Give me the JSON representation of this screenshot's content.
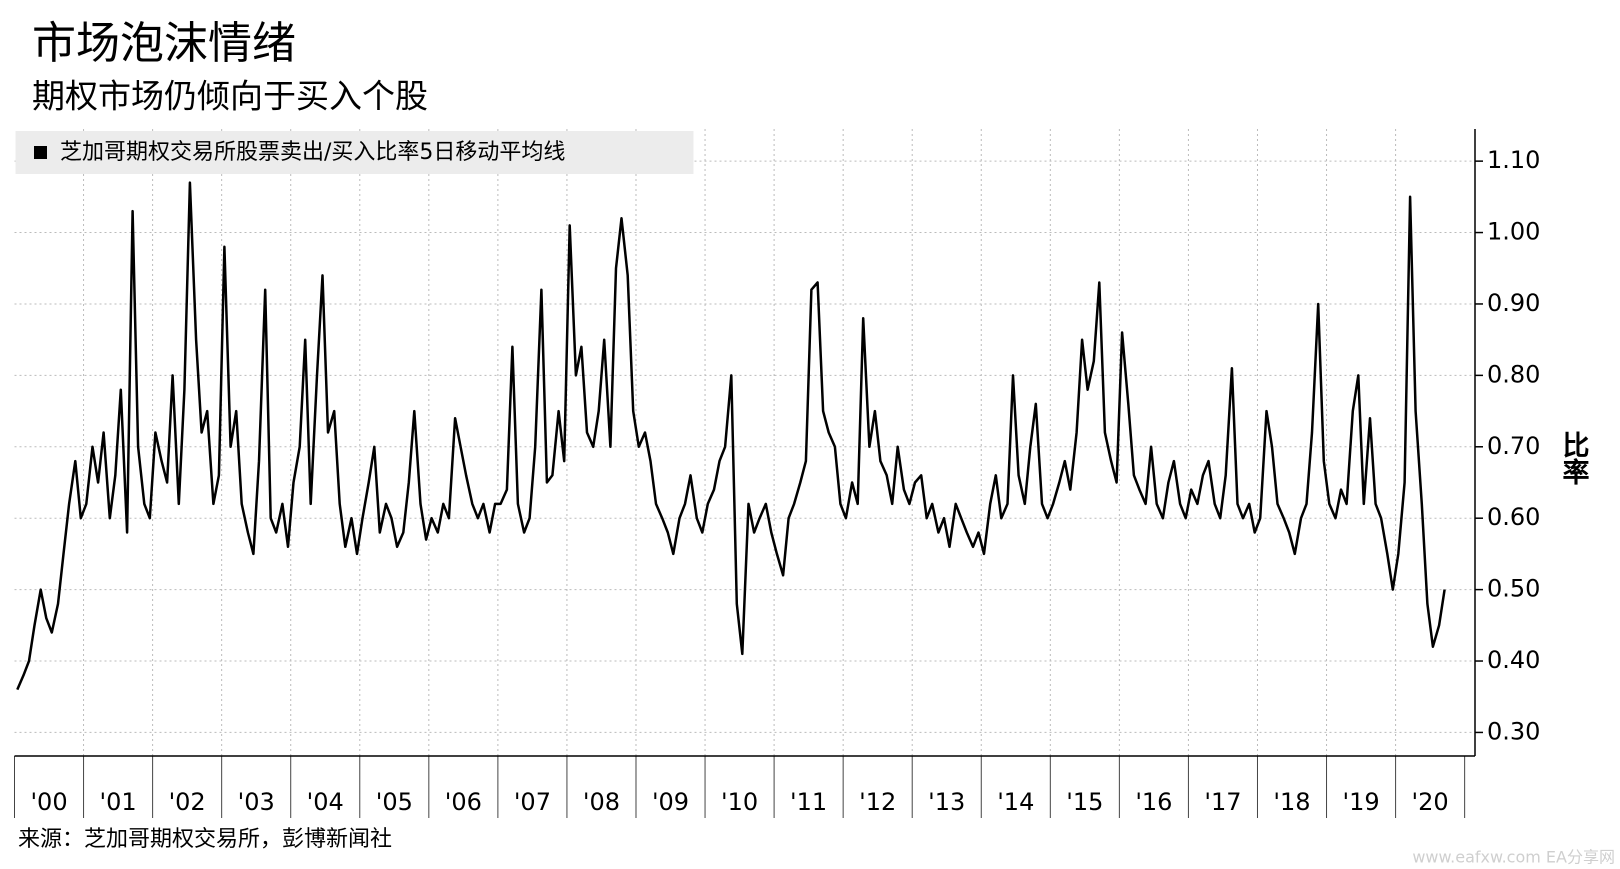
{
  "chart_data": {
    "type": "line",
    "title": "市场泡沫情绪",
    "subtitle": "期权市场仍倾向于买入个股",
    "ylabel": "比率",
    "source": "来源：芝加哥期权交易所，彭博新闻社",
    "watermark": "www.eafxw.com EA分享网",
    "legend": "top-left",
    "grid": true,
    "xlim": [
      2000,
      2021.15
    ],
    "xticks": [
      {
        "value": 2000,
        "label": "'00"
      },
      {
        "value": 2001,
        "label": "'01"
      },
      {
        "value": 2002,
        "label": "'02"
      },
      {
        "value": 2003,
        "label": "'03"
      },
      {
        "value": 2004,
        "label": "'04"
      },
      {
        "value": 2005,
        "label": "'05"
      },
      {
        "value": 2006,
        "label": "'06"
      },
      {
        "value": 2007,
        "label": "'07"
      },
      {
        "value": 2008,
        "label": "'08"
      },
      {
        "value": 2009,
        "label": "'09"
      },
      {
        "value": 2010,
        "label": "'10"
      },
      {
        "value": 2011,
        "label": "'11"
      },
      {
        "value": 2012,
        "label": "'12"
      },
      {
        "value": 2013,
        "label": "'13"
      },
      {
        "value": 2014,
        "label": "'14"
      },
      {
        "value": 2015,
        "label": "'15"
      },
      {
        "value": 2016,
        "label": "'16"
      },
      {
        "value": 2017,
        "label": "'17"
      },
      {
        "value": 2018,
        "label": "'18"
      },
      {
        "value": 2019,
        "label": "'19"
      },
      {
        "value": 2020,
        "label": "'20"
      }
    ],
    "ylim": [
      0.267,
      1.145
    ],
    "yticks": [
      {
        "value": 0.3,
        "label": "0.30"
      },
      {
        "value": 0.4,
        "label": "0.40"
      },
      {
        "value": 0.5,
        "label": "0.50"
      },
      {
        "value": 0.6,
        "label": "0.60"
      },
      {
        "value": 0.7,
        "label": "0.70"
      },
      {
        "value": 0.8,
        "label": "0.80"
      },
      {
        "value": 0.9,
        "label": "0.90"
      },
      {
        "value": 1.0,
        "label": "1.00"
      },
      {
        "value": 1.1,
        "label": "1.10"
      }
    ],
    "x": [
      2000.04,
      2000.13,
      2000.21,
      2000.29,
      2000.38,
      2000.46,
      2000.54,
      2000.63,
      2000.71,
      2000.79,
      2000.88,
      2000.96,
      2001.04,
      2001.13,
      2001.21,
      2001.29,
      2001.38,
      2001.46,
      2001.54,
      2001.63,
      2001.71,
      2001.79,
      2001.88,
      2001.96,
      2002.04,
      2002.13,
      2002.21,
      2002.29,
      2002.38,
      2002.46,
      2002.54,
      2002.63,
      2002.71,
      2002.79,
      2002.88,
      2002.96,
      2003.04,
      2003.13,
      2003.21,
      2003.29,
      2003.38,
      2003.46,
      2003.54,
      2003.63,
      2003.71,
      2003.79,
      2003.88,
      2003.96,
      2004.04,
      2004.13,
      2004.21,
      2004.29,
      2004.38,
      2004.46,
      2004.54,
      2004.63,
      2004.71,
      2004.79,
      2004.88,
      2004.96,
      2005.04,
      2005.13,
      2005.21,
      2005.29,
      2005.38,
      2005.46,
      2005.54,
      2005.63,
      2005.71,
      2005.79,
      2005.88,
      2005.96,
      2006.04,
      2006.13,
      2006.21,
      2006.29,
      2006.38,
      2006.46,
      2006.54,
      2006.63,
      2006.71,
      2006.79,
      2006.88,
      2006.96,
      2007.04,
      2007.13,
      2007.21,
      2007.29,
      2007.38,
      2007.46,
      2007.54,
      2007.63,
      2007.71,
      2007.79,
      2007.88,
      2007.96,
      2008.04,
      2008.13,
      2008.21,
      2008.29,
      2008.38,
      2008.46,
      2008.54,
      2008.63,
      2008.71,
      2008.79,
      2008.88,
      2008.96,
      2009.04,
      2009.13,
      2009.21,
      2009.29,
      2009.38,
      2009.46,
      2009.54,
      2009.63,
      2009.71,
      2009.79,
      2009.88,
      2009.96,
      2010.04,
      2010.13,
      2010.21,
      2010.29,
      2010.38,
      2010.46,
      2010.54,
      2010.63,
      2010.71,
      2010.79,
      2010.88,
      2010.96,
      2011.04,
      2011.13,
      2011.21,
      2011.29,
      2011.38,
      2011.46,
      2011.54,
      2011.63,
      2011.71,
      2011.79,
      2011.88,
      2011.96,
      2012.04,
      2012.13,
      2012.21,
      2012.29,
      2012.38,
      2012.46,
      2012.54,
      2012.63,
      2012.71,
      2012.79,
      2012.88,
      2012.96,
      2013.04,
      2013.13,
      2013.21,
      2013.29,
      2013.38,
      2013.46,
      2013.54,
      2013.63,
      2013.71,
      2013.79,
      2013.88,
      2013.96,
      2014.04,
      2014.13,
      2014.21,
      2014.29,
      2014.38,
      2014.46,
      2014.54,
      2014.63,
      2014.71,
      2014.79,
      2014.88,
      2014.96,
      2015.04,
      2015.13,
      2015.21,
      2015.29,
      2015.38,
      2015.46,
      2015.54,
      2015.63,
      2015.71,
      2015.79,
      2015.88,
      2015.96,
      2016.04,
      2016.13,
      2016.21,
      2016.29,
      2016.38,
      2016.46,
      2016.54,
      2016.63,
      2016.71,
      2016.79,
      2016.88,
      2016.96,
      2017.04,
      2017.13,
      2017.21,
      2017.29,
      2017.38,
      2017.46,
      2017.54,
      2017.63,
      2017.71,
      2017.79,
      2017.88,
      2017.96,
      2018.04,
      2018.13,
      2018.21,
      2018.29,
      2018.38,
      2018.46,
      2018.54,
      2018.63,
      2018.71,
      2018.79,
      2018.88,
      2018.96,
      2019.04,
      2019.13,
      2019.21,
      2019.29,
      2019.38,
      2019.46,
      2019.54,
      2019.63,
      2019.71,
      2019.79,
      2019.88,
      2019.96,
      2020.04,
      2020.13,
      2020.21,
      2020.29,
      2020.38,
      2020.46,
      2020.54,
      2020.63,
      2020.71
    ],
    "series": [
      {
        "name": "芝加哥期权交易所股票卖出/买入比率5日移动平均线",
        "color": "#000000",
        "values": [
          0.36,
          0.38,
          0.4,
          0.45,
          0.5,
          0.46,
          0.44,
          0.48,
          0.55,
          0.62,
          0.68,
          0.6,
          0.62,
          0.7,
          0.65,
          0.72,
          0.6,
          0.66,
          0.78,
          0.58,
          1.03,
          0.7,
          0.62,
          0.6,
          0.72,
          0.68,
          0.65,
          0.8,
          0.62,
          0.78,
          1.07,
          0.85,
          0.72,
          0.75,
          0.62,
          0.66,
          0.98,
          0.7,
          0.75,
          0.62,
          0.58,
          0.55,
          0.68,
          0.92,
          0.6,
          0.58,
          0.62,
          0.56,
          0.65,
          0.7,
          0.85,
          0.62,
          0.8,
          0.94,
          0.72,
          0.75,
          0.62,
          0.56,
          0.6,
          0.55,
          0.6,
          0.65,
          0.7,
          0.58,
          0.62,
          0.6,
          0.56,
          0.58,
          0.65,
          0.75,
          0.62,
          0.57,
          0.6,
          0.58,
          0.62,
          0.6,
          0.74,
          0.7,
          0.66,
          0.62,
          0.6,
          0.62,
          0.58,
          0.62,
          0.62,
          0.64,
          0.84,
          0.62,
          0.58,
          0.6,
          0.7,
          0.92,
          0.65,
          0.66,
          0.75,
          0.68,
          1.01,
          0.8,
          0.84,
          0.72,
          0.7,
          0.75,
          0.85,
          0.7,
          0.95,
          1.02,
          0.94,
          0.75,
          0.7,
          0.72,
          0.68,
          0.62,
          0.6,
          0.58,
          0.55,
          0.6,
          0.62,
          0.66,
          0.6,
          0.58,
          0.62,
          0.64,
          0.68,
          0.7,
          0.8,
          0.48,
          0.41,
          0.62,
          0.58,
          0.6,
          0.62,
          0.58,
          0.55,
          0.52,
          0.6,
          0.62,
          0.65,
          0.68,
          0.92,
          0.93,
          0.75,
          0.72,
          0.7,
          0.62,
          0.6,
          0.65,
          0.62,
          0.88,
          0.7,
          0.75,
          0.68,
          0.66,
          0.62,
          0.7,
          0.64,
          0.62,
          0.65,
          0.66,
          0.6,
          0.62,
          0.58,
          0.6,
          0.56,
          0.62,
          0.6,
          0.58,
          0.56,
          0.58,
          0.55,
          0.62,
          0.66,
          0.6,
          0.62,
          0.8,
          0.66,
          0.62,
          0.7,
          0.76,
          0.62,
          0.6,
          0.62,
          0.65,
          0.68,
          0.64,
          0.72,
          0.85,
          0.78,
          0.82,
          0.93,
          0.72,
          0.68,
          0.65,
          0.86,
          0.76,
          0.66,
          0.64,
          0.62,
          0.7,
          0.62,
          0.6,
          0.65,
          0.68,
          0.62,
          0.6,
          0.64,
          0.62,
          0.66,
          0.68,
          0.62,
          0.6,
          0.66,
          0.81,
          0.62,
          0.6,
          0.62,
          0.58,
          0.6,
          0.75,
          0.7,
          0.62,
          0.6,
          0.58,
          0.55,
          0.6,
          0.62,
          0.72,
          0.9,
          0.68,
          0.62,
          0.6,
          0.64,
          0.62,
          0.75,
          0.8,
          0.62,
          0.74,
          0.62,
          0.6,
          0.55,
          0.5,
          0.55,
          0.65,
          1.05,
          0.75,
          0.62,
          0.48,
          0.42,
          0.45,
          0.5
        ]
      }
    ]
  }
}
